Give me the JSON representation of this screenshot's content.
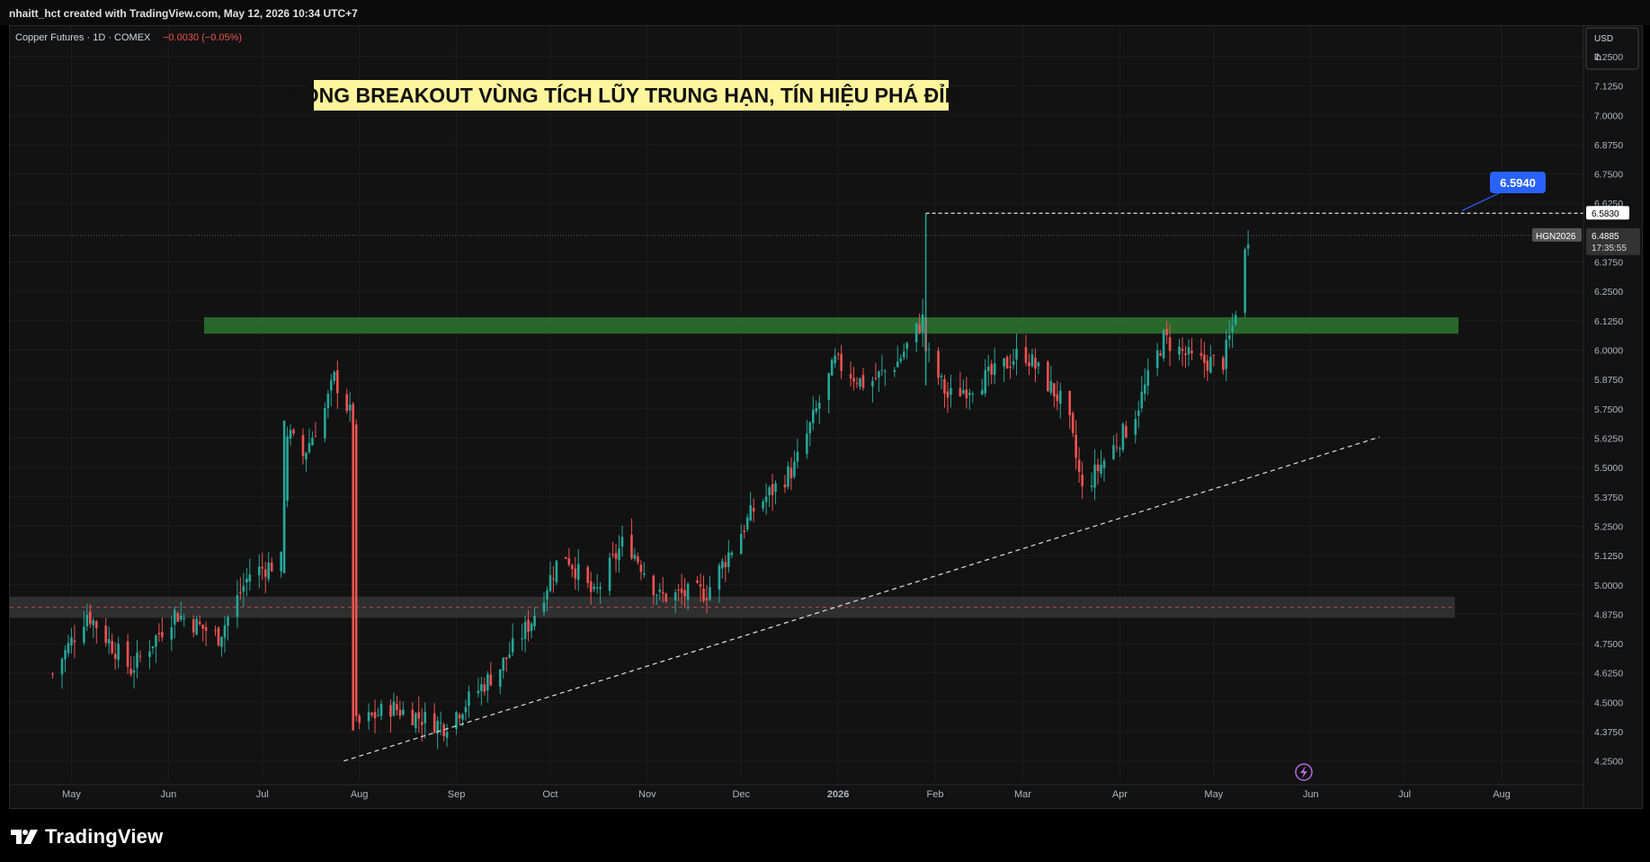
{
  "header": {
    "created_text": "nhaitt_hct created with TradingView.com, May 12, 2026 10:34 UTC+7"
  },
  "symbol_info": {
    "name": "Copper Futures · 1D · COMEX",
    "change": "−0.0030 (−0.05%)"
  },
  "currency_box": {
    "currency": "USD",
    "unit": "lb"
  },
  "annotation_title": "ĐỒNG BREAKOUT VÙNG TÍCH LŨY TRUNG HẠN, TÍN HIỆU PHÁ ĐỈNH",
  "price_labels": {
    "target_badge": "6.5940",
    "peak_label": "6.5830",
    "ticker": "HGN2026",
    "last_price": "6.4885",
    "countdown": "17:35:55"
  },
  "footer": {
    "brand": "TradingView"
  },
  "colors": {
    "up": "#26a69a",
    "down": "#ef5350",
    "resistance_zone": "#2e7d32",
    "support_zone": "#3a3a3a",
    "title_bg": "#fff59d",
    "badge": "#2962ff"
  },
  "icons": [
    "tradingview-logo-icon",
    "lightning-icon"
  ],
  "chart_data": {
    "type": "candlestick",
    "title": "Copper Futures · 1D · COMEX",
    "ylim": [
      4.18,
      7.38
    ],
    "y_ticks": [
      "7.2500",
      "7.1250",
      "7.0000",
      "6.8750",
      "6.7500",
      "6.6250",
      "6.3750",
      "6.2500",
      "6.1250",
      "6.0000",
      "5.8750",
      "5.7500",
      "5.6250",
      "5.5000",
      "5.3750",
      "5.2500",
      "5.1250",
      "5.0000",
      "4.8750",
      "4.7500",
      "4.6250",
      "4.5000",
      "4.3750",
      "4.2500"
    ],
    "x_ticks": [
      "May",
      "Jun",
      "Jul",
      "Aug",
      "Sep",
      "Oct",
      "Nov",
      "Dec",
      "2026",
      "Feb",
      "Mar",
      "Apr",
      "May",
      "Jun",
      "Jul",
      "Aug"
    ],
    "grid": true,
    "close_path": [
      [
        "2025-04-25",
        4.62
      ],
      [
        "2025-05-06",
        4.88
      ],
      [
        "2025-05-20",
        4.64
      ],
      [
        "2025-06-03",
        4.88
      ],
      [
        "2025-06-17",
        4.78
      ],
      [
        "2025-06-27",
        5.05
      ],
      [
        "2025-07-07",
        5.1
      ],
      [
        "2025-07-09",
        5.65
      ],
      [
        "2025-07-14",
        5.55
      ],
      [
        "2025-07-21",
        5.75
      ],
      [
        "2025-07-24",
        5.88
      ],
      [
        "2025-07-30",
        5.7
      ],
      [
        "2025-07-31",
        4.4
      ],
      [
        "2025-08-11",
        4.48
      ],
      [
        "2025-08-28",
        4.4
      ],
      [
        "2025-09-15",
        4.65
      ],
      [
        "2025-09-25",
        4.85
      ],
      [
        "2025-10-05",
        5.15
      ],
      [
        "2025-10-15",
        4.95
      ],
      [
        "2025-10-25",
        5.2
      ],
      [
        "2025-11-05",
        4.95
      ],
      [
        "2025-11-20",
        4.97
      ],
      [
        "2025-12-05",
        5.32
      ],
      [
        "2025-12-18",
        5.5
      ],
      [
        "2025-12-31",
        5.95
      ],
      [
        "2026-01-10",
        5.85
      ],
      [
        "2026-01-20",
        5.95
      ],
      [
        "2026-01-28",
        6.13
      ],
      [
        "2026-01-29",
        6.0
      ],
      [
        "2026-02-05",
        5.8
      ],
      [
        "2026-02-20",
        5.9
      ],
      [
        "2026-03-01",
        6.0
      ],
      [
        "2026-03-15",
        5.75
      ],
      [
        "2026-03-20",
        5.4
      ],
      [
        "2026-03-28",
        5.55
      ],
      [
        "2026-04-05",
        5.7
      ],
      [
        "2026-04-15",
        6.05
      ],
      [
        "2026-04-25",
        5.95
      ],
      [
        "2026-05-04",
        5.95
      ],
      [
        "2026-05-07",
        6.1
      ],
      [
        "2026-05-12",
        6.4885
      ]
    ],
    "resistance_zone": [
      6.07,
      6.14
    ],
    "support_zone": [
      4.86,
      4.95
    ],
    "recent_high": 6.583,
    "target": 6.594,
    "trendline": [
      [
        "2025-07-27",
        4.25
      ],
      [
        "2026-06-23",
        5.63
      ]
    ]
  }
}
